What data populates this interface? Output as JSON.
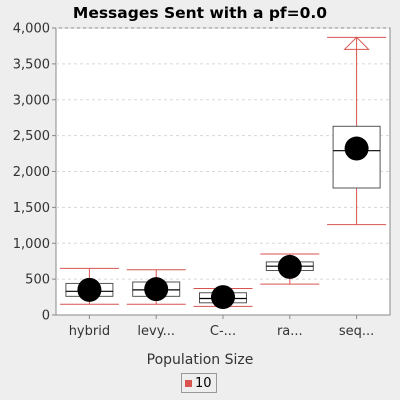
{
  "chart_data": {
    "type": "box",
    "title": "Messages Sent  with a pf=0.0",
    "xlabel": "Population Size",
    "ylabel": "",
    "ylim": [
      0,
      4000
    ],
    "yticks": [
      0,
      500,
      1000,
      1500,
      2000,
      2500,
      3000,
      3500,
      4000
    ],
    "ytick_labels": [
      "0",
      "500",
      "1,000",
      "1,500",
      "2,000",
      "2,500",
      "3,000",
      "3,500",
      "4,000"
    ],
    "grid": true,
    "legend_position": "bottom",
    "categories": [
      "hybrid",
      "levy...",
      "C-...",
      "ra...",
      "seq..."
    ],
    "series": [
      {
        "name": "10",
        "color": "#d9534f",
        "boxes": [
          {
            "min": 150,
            "q1": 260,
            "median": 330,
            "q3": 440,
            "max": 650,
            "mean": 350
          },
          {
            "min": 150,
            "q1": 260,
            "median": 350,
            "q3": 460,
            "max": 630,
            "mean": 360
          },
          {
            "min": 120,
            "q1": 170,
            "median": 230,
            "q3": 310,
            "max": 370,
            "mean": 250
          },
          {
            "min": 430,
            "q1": 620,
            "median": 680,
            "q3": 740,
            "max": 850,
            "mean": 670
          },
          {
            "min": 1260,
            "q1": 1770,
            "median": 2290,
            "q3": 2630,
            "max": 3870,
            "mean": 2320,
            "outliers_max": [
              3870
            ]
          }
        ]
      }
    ]
  }
}
